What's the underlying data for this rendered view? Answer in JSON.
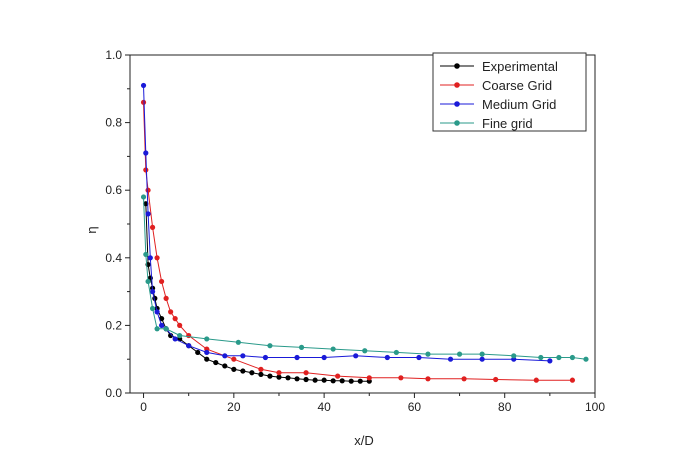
{
  "chart_data": {
    "type": "line",
    "title": "",
    "xlabel": "x/D",
    "ylabel": "η",
    "xlim": [
      -3,
      100
    ],
    "ylim": [
      0,
      1.0
    ],
    "xticks": [
      0,
      20,
      40,
      60,
      80,
      100
    ],
    "yticks": [
      0.0,
      0.2,
      0.4,
      0.6,
      0.8,
      1.0
    ],
    "xtick_labels": [
      "0",
      "20",
      "40",
      "60",
      "80",
      "100"
    ],
    "ytick_labels": [
      "0.0",
      "0.2",
      "0.4",
      "0.6",
      "0.8",
      "1.0"
    ],
    "grid": false,
    "legend_position": "top-right",
    "series": [
      {
        "name": "Experimental",
        "color": "#000000",
        "x": [
          0.5,
          1.0,
          1.5,
          2.0,
          2.5,
          3.0,
          4.0,
          5.0,
          6.0,
          8.0,
          10.0,
          12.0,
          14.0,
          16.0,
          18.0,
          20.0,
          22.0,
          24.0,
          26.0,
          28.0,
          30.0,
          32.0,
          34.0,
          36.0,
          38.0,
          40.0,
          42.0,
          44.0,
          46.0,
          48.0,
          50.0
        ],
        "y": [
          0.56,
          0.38,
          0.34,
          0.31,
          0.28,
          0.25,
          0.22,
          0.19,
          0.17,
          0.16,
          0.14,
          0.12,
          0.1,
          0.09,
          0.08,
          0.07,
          0.065,
          0.06,
          0.055,
          0.05,
          0.047,
          0.045,
          0.042,
          0.04,
          0.038,
          0.038,
          0.036,
          0.036,
          0.035,
          0.035,
          0.035
        ]
      },
      {
        "name": "Coarse Grid",
        "color": "#e02020",
        "x": [
          0,
          0.5,
          1.0,
          2.0,
          3.0,
          4.0,
          5.0,
          6.0,
          7.0,
          8.0,
          10.0,
          14.0,
          20.0,
          26.0,
          30.0,
          36.0,
          43.0,
          50.0,
          57.0,
          63.0,
          71.0,
          78.0,
          87.0,
          95.0
        ],
        "y": [
          0.86,
          0.66,
          0.6,
          0.49,
          0.4,
          0.33,
          0.28,
          0.24,
          0.22,
          0.2,
          0.17,
          0.13,
          0.1,
          0.07,
          0.06,
          0.06,
          0.05,
          0.045,
          0.045,
          0.042,
          0.042,
          0.04,
          0.038,
          0.038
        ]
      },
      {
        "name": "Medium Grid",
        "color": "#1a1ad8",
        "x": [
          0,
          0.5,
          1.0,
          1.5,
          2.0,
          3.0,
          4.0,
          5.0,
          7.0,
          10.0,
          14.0,
          18.0,
          22.0,
          27.0,
          34.0,
          40.0,
          47.0,
          54.0,
          61.0,
          68.0,
          75.0,
          82.0,
          90.0
        ],
        "y": [
          0.91,
          0.71,
          0.53,
          0.4,
          0.3,
          0.24,
          0.2,
          0.19,
          0.16,
          0.14,
          0.12,
          0.11,
          0.11,
          0.105,
          0.105,
          0.105,
          0.11,
          0.105,
          0.105,
          0.1,
          0.1,
          0.1,
          0.095
        ]
      },
      {
        "name": "Fine grid",
        "color": "#2a9a8a",
        "x": [
          0,
          0.5,
          1.0,
          2.0,
          3.0,
          5.0,
          8.0,
          14.0,
          21.0,
          28.0,
          35.0,
          42.0,
          49.0,
          56.0,
          63.0,
          70.0,
          75.0,
          82.0,
          88.0,
          92.0,
          95.0,
          98.0
        ],
        "y": [
          0.58,
          0.41,
          0.33,
          0.25,
          0.19,
          0.19,
          0.17,
          0.16,
          0.15,
          0.14,
          0.135,
          0.13,
          0.125,
          0.12,
          0.115,
          0.115,
          0.115,
          0.11,
          0.105,
          0.105,
          0.105,
          0.1
        ]
      }
    ]
  }
}
